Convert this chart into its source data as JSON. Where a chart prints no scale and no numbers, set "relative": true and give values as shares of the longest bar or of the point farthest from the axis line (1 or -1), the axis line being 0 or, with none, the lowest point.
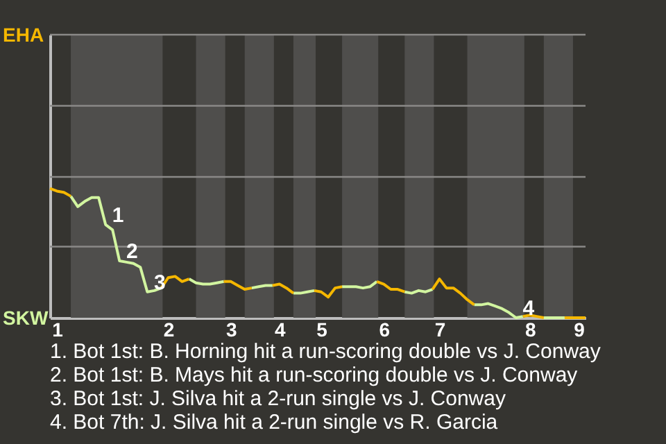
{
  "chart_data": {
    "type": "line",
    "relative": true,
    "categories": [
      null,
      "1",
      null,
      null,
      null,
      null,
      null,
      null,
      null,
      null,
      null,
      null,
      null,
      null,
      null,
      null,
      null,
      "2",
      null,
      null,
      null,
      null,
      null,
      null,
      null,
      null,
      "3",
      null,
      null,
      null,
      null,
      null,
      null,
      "4",
      null,
      null,
      null,
      null,
      null,
      "5",
      null,
      null,
      null,
      null,
      null,
      null,
      null,
      null,
      "6",
      null,
      null,
      null,
      null,
      null,
      null,
      null,
      "7",
      null,
      null,
      null,
      null,
      null,
      null,
      null,
      null,
      null,
      null,
      null,
      null,
      "8",
      null,
      null,
      null,
      null,
      null,
      null,
      "9",
      null
    ],
    "series": [
      {
        "color": "#f5b700",
        "values": [
          1,
          0.98,
          0.97,
          0.94,
          null,
          null,
          null,
          null,
          null,
          null,
          null,
          null,
          null,
          null,
          null,
          null,
          0.23,
          0.31,
          0.32,
          0.28,
          0.3,
          null,
          null,
          null,
          null,
          0.28,
          0.28,
          0.25,
          0.22,
          0.23,
          null,
          null,
          0.25,
          0.26,
          0.23,
          0.19,
          null,
          null,
          0.21,
          0.2,
          0.16,
          0.23,
          0.24,
          null,
          null,
          null,
          null,
          0.28,
          0.26,
          0.22,
          0.22,
          0.2,
          null,
          null,
          null,
          0.22,
          0.3,
          0.23,
          0.23,
          0.19,
          0.14,
          0.1,
          null,
          null,
          null,
          null,
          null,
          null,
          0.01,
          0.02,
          0.01,
          0,
          null,
          null,
          0,
          0,
          0,
          0
        ]
      },
      {
        "color": "#d2f5a0",
        "values": [
          null,
          null,
          null,
          0.94,
          0.86,
          0.9,
          0.93,
          0.93,
          0.72,
          0.68,
          0.44,
          0.43,
          0.42,
          0.39,
          0.2,
          0.21,
          0.23,
          null,
          null,
          null,
          0.3,
          0.27,
          0.26,
          0.26,
          0.27,
          0.28,
          null,
          null,
          null,
          0.23,
          0.24,
          0.25,
          0.25,
          null,
          null,
          0.19,
          0.19,
          0.2,
          0.21,
          null,
          null,
          null,
          0.24,
          0.24,
          0.24,
          0.23,
          0.24,
          0.28,
          null,
          null,
          null,
          0.2,
          0.19,
          0.21,
          0.2,
          0.22,
          null,
          null,
          null,
          null,
          null,
          0.1,
          0.1,
          0.11,
          0.09,
          0.07,
          0.04,
          0,
          0.01,
          null,
          null,
          0,
          0,
          0,
          0,
          null,
          null,
          null
        ]
      }
    ],
    "ref_lines": [
      {
        "axis": "y",
        "value": 0.55,
        "color": "#8a8987"
      },
      {
        "axis": "y",
        "value": 1.09,
        "color": "#8a8987"
      },
      {
        "axis": "y",
        "value": 1.64,
        "color": "#8a8987"
      },
      {
        "axis": "y",
        "value": 2.19,
        "color": "#8a8987"
      }
    ],
    "annotations": [
      "EHA",
      "SKW",
      {
        "text": "1",
        "y": 0.72
      },
      {
        "text": "2",
        "y": 0.44
      },
      {
        "text": "3",
        "y": 0.2
      },
      {
        "text": "4",
        "y": 0
      },
      "1. Bot 1st: B. Horning hit a run-scoring double vs J. Conway",
      "2. Bot 1st: B. Mays hit a run-scoring double vs J. Conway",
      "3. Bot 1st: J. Silva hit a 2-run single vs J. Conway",
      "4. Bot 7th: J. Silva hit a 2-run single vs R. Garcia"
    ]
  }
}
